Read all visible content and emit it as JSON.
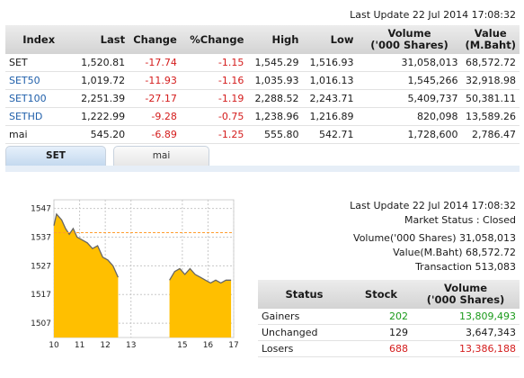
{
  "top_update": "Last Update 22 Jul 2014 17:08:32",
  "table": {
    "headers": [
      "Index",
      "Last",
      "Change",
      "%Change",
      "High",
      "Low",
      "Volume\n('000 Shares)",
      "Value\n(M.Baht)"
    ],
    "rows": [
      {
        "name": "SET",
        "last": "1,520.81",
        "change": "-17.74",
        "pct": "-1.15",
        "high": "1,545.29",
        "low": "1,516.93",
        "volume": "31,058,013",
        "value": "68,572.72"
      },
      {
        "name": "SET50",
        "last": "1,019.72",
        "change": "-11.93",
        "pct": "-1.16",
        "high": "1,035.93",
        "low": "1,016.13",
        "volume": "1,545,266",
        "value": "32,918.98"
      },
      {
        "name": "SET100",
        "last": "2,251.39",
        "change": "-27.17",
        "pct": "-1.19",
        "high": "2,288.52",
        "low": "2,243.71",
        "volume": "5,409,737",
        "value": "50,381.11"
      },
      {
        "name": "SETHD",
        "last": "1,222.99",
        "change": "-9.28",
        "pct": "-0.75",
        "high": "1,238.96",
        "low": "1,216.89",
        "volume": "820,098",
        "value": "13,589.26"
      },
      {
        "name": "mai",
        "last": "545.20",
        "change": "-6.89",
        "pct": "-1.25",
        "high": "555.80",
        "low": "542.71",
        "volume": "1,728,600",
        "value": "2,786.47"
      }
    ]
  },
  "tabs": [
    {
      "label": "SET",
      "active": true
    },
    {
      "label": "mai",
      "active": false
    }
  ],
  "chart_data": {
    "type": "area",
    "title": "",
    "xlabel": "",
    "ylabel": "",
    "x_ticks": [
      "10",
      "11",
      "12",
      "13",
      "15",
      "16",
      "17"
    ],
    "y_ticks": [
      1507,
      1517,
      1527,
      1537,
      1547
    ],
    "ylim": [
      1502,
      1550
    ],
    "previous_close": 1538.55,
    "grid": true,
    "series": [
      {
        "session": "morning",
        "x": [
          10.0,
          10.1,
          10.2,
          10.3,
          10.45,
          10.6,
          10.75,
          10.9,
          11.1,
          11.3,
          11.5,
          11.7,
          11.9,
          12.1,
          12.3,
          12.5
        ],
        "values": [
          1541,
          1545,
          1544,
          1543,
          1540,
          1538,
          1540,
          1537,
          1536,
          1535,
          1533,
          1534,
          1530,
          1529,
          1527,
          1523
        ]
      },
      {
        "session": "afternoon",
        "x": [
          14.5,
          14.7,
          14.9,
          15.1,
          15.3,
          15.5,
          15.7,
          15.9,
          16.1,
          16.3,
          16.5,
          16.7,
          16.9
        ],
        "values": [
          1522,
          1525,
          1526,
          1524,
          1526,
          1524,
          1523,
          1522,
          1521,
          1522,
          1521,
          1522,
          1522
        ]
      }
    ],
    "colors": {
      "fill": "#ffbf00",
      "line": "#666666",
      "prev_close": "#ff9d2e"
    }
  },
  "stats": {
    "last_update": "Last Update 22 Jul 2014 17:08:32",
    "market_status": "Market Status : Closed",
    "volume": "Volume('000 Shares) 31,058,013",
    "value": "Value(M.Baht) 68,572.72",
    "transaction": "Transaction 513,083",
    "headers": [
      "Status",
      "Stock",
      "Volume\n('000 Shares)"
    ],
    "rows": [
      {
        "status": "Gainers",
        "stock": "202",
        "volume": "13,809,493",
        "color": "green"
      },
      {
        "status": "Unchanged",
        "stock": "129",
        "volume": "3,647,343",
        "color": "black"
      },
      {
        "status": "Losers",
        "stock": "688",
        "volume": "13,386,188",
        "color": "red"
      }
    ]
  }
}
